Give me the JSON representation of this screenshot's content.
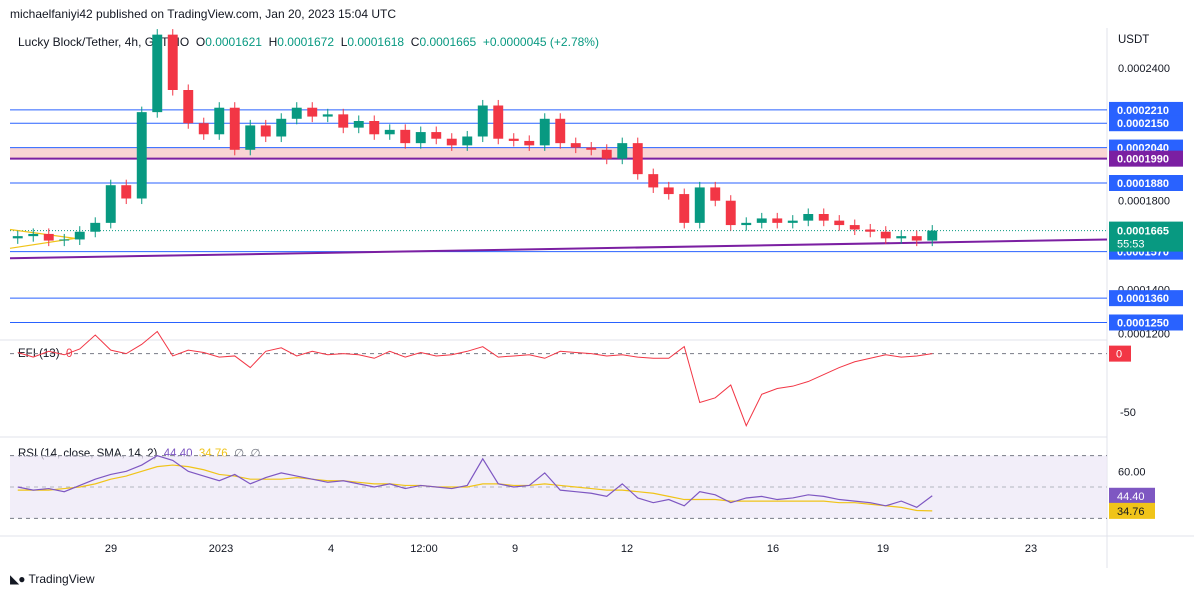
{
  "header": {
    "published": "michaelfaniyi42 published on TradingView.com, Jan 20, 2023 15:04 UTC"
  },
  "legend": {
    "symbol": "Lucky Block/Tether, 4h, GATEIO",
    "o_label": "O",
    "o": "0.0001621",
    "h_label": "H",
    "h": "0.0001672",
    "l_label": "L",
    "l": "0.0001618",
    "c_label": "C",
    "c": "0.0001665",
    "change": "+0.0000045 (+2.78%)"
  },
  "colors": {
    "up": "#089981",
    "down": "#f23645",
    "level_line": "#2962ff",
    "zone_fill": "#f8c9c9",
    "trendline": "#7b1fa2",
    "efi": "#f23645",
    "rsi": "#7e57c2",
    "rsi_sma": "#f0c419",
    "rsi_band": "#ede7f6"
  },
  "price_axis": {
    "currency": "USDT",
    "ticks": [
      "0.0002400",
      "0.0001800",
      "0.0001400",
      "0.0001200"
    ]
  },
  "levels": [
    {
      "label": "0.0002210",
      "value": 0.000221
    },
    {
      "label": "0.0002150",
      "value": 0.000215
    },
    {
      "label": "0.0002040",
      "value": 0.000204
    },
    {
      "label": "0.0001990",
      "value": 0.000199
    },
    {
      "label": "0.0001880",
      "value": 0.000188
    },
    {
      "label": "0.0001570",
      "value": 0.000157
    },
    {
      "label": "0.0001360",
      "value": 0.000136
    },
    {
      "label": "0.0001250",
      "value": 0.000125
    }
  ],
  "current_price": {
    "label": "0.0001665",
    "value": 0.0001665,
    "countdown": "55:53"
  },
  "time_axis": {
    "labels": [
      "29",
      "2023",
      "4",
      "12:00",
      "9",
      "12",
      "16",
      "19",
      "23"
    ]
  },
  "efi": {
    "legend_name": "EFI (13)",
    "legend_value": "0",
    "axis_ticks": [
      "-50"
    ],
    "current_label": "0"
  },
  "rsi": {
    "legend_name": "RSI (14, close, SMA, 14, 2)",
    "rsi_value": "44.40",
    "sma_value": "34.76",
    "extra_values": [
      "∅",
      "∅"
    ],
    "axis_ticks": [
      "60.00"
    ],
    "current_rsi": "44.40",
    "current_sma": "34.76"
  },
  "footer": {
    "brand": "TradingView",
    "logo": "tradingview-logo-icon"
  },
  "chart_data": [
    {
      "type": "candlestick",
      "title": "Lucky Block/Tether, 4h, GATEIO",
      "ylabel": "USDT",
      "ylim": [
        0.000118,
        0.000258
      ],
      "x_labels": [
        "29",
        "2023",
        "4",
        "12:00",
        "9",
        "12",
        "16",
        "19",
        "23"
      ],
      "close_series": [
        0.000164,
        0.000165,
        0.000162,
        0.0001625,
        0.000166,
        0.00017,
        0.000187,
        0.000181,
        0.00022,
        0.000255,
        0.00023,
        0.000215,
        0.00021,
        0.000222,
        0.000203,
        0.000214,
        0.000209,
        0.000217,
        0.000222,
        0.000218,
        0.000219,
        0.000213,
        0.000216,
        0.00021,
        0.000212,
        0.000206,
        0.000211,
        0.000208,
        0.000205,
        0.000209,
        0.000223,
        0.000208,
        0.000207,
        0.000205,
        0.000217,
        0.000206,
        0.000204,
        0.000203,
        0.000199,
        0.000206,
        0.000192,
        0.000186,
        0.000183,
        0.00017,
        0.000186,
        0.00018,
        0.000169,
        0.00017,
        0.000172,
        0.00017,
        0.000171,
        0.000174,
        0.000171,
        0.000169,
        0.000167,
        0.000166,
        0.000163,
        0.000164,
        0.000162,
        0.0001665
      ],
      "levels": [
        0.000221,
        0.000215,
        0.000204,
        0.000199,
        0.000188,
        0.000157,
        0.000136,
        0.000125
      ],
      "current": 0.0001665
    },
    {
      "type": "line",
      "title": "EFI (13)",
      "ylim": [
        -70,
        10
      ],
      "ticks": [
        0,
        -50
      ],
      "series": [
        {
          "values": [
            1,
            -3,
            2,
            -1,
            4,
            16,
            3,
            0,
            8,
            19,
            -2,
            3,
            1,
            -3,
            -2,
            -12,
            2,
            5,
            -2,
            2,
            -1,
            0,
            -1,
            -4,
            2,
            -3,
            1,
            -2,
            -1,
            2,
            6,
            -3,
            -2,
            -1,
            -4,
            2,
            1,
            0,
            -2,
            -1,
            -3,
            -4,
            -4,
            6,
            -42,
            -38,
            -27,
            -62,
            -35,
            -30,
            -28,
            -24,
            -18,
            -12,
            -7,
            -4,
            -1,
            -3,
            -2,
            0
          ]
        }
      ]
    },
    {
      "type": "line",
      "title": "RSI (14, close, SMA, 14, 2)",
      "ylim": [
        20,
        80
      ],
      "ticks": [
        60
      ],
      "series": [
        {
          "values": [
            50,
            48,
            49,
            47,
            51,
            55,
            58,
            60,
            64,
            70,
            67,
            60,
            57,
            54,
            58,
            52,
            56,
            59,
            57,
            55,
            53,
            54,
            52,
            50,
            52,
            49,
            51,
            50,
            49,
            51,
            68,
            52,
            50,
            51,
            59,
            48,
            47,
            46,
            44,
            52,
            43,
            40,
            42,
            38,
            47,
            45,
            40,
            43,
            44,
            42,
            43,
            45,
            44,
            42,
            41,
            40,
            38,
            41,
            37,
            44.4
          ]
        },
        {
          "values": [
            48,
            48,
            48,
            49,
            50,
            52,
            55,
            57,
            60,
            63,
            64,
            63,
            61,
            58,
            57,
            55,
            55,
            55,
            56,
            55,
            54,
            54,
            53,
            52,
            52,
            51,
            51,
            50,
            50,
            50,
            52,
            52,
            51,
            51,
            52,
            51,
            50,
            49,
            48,
            48,
            47,
            46,
            44,
            42,
            42,
            42,
            41,
            41,
            41,
            41,
            41,
            41,
            41,
            40,
            40,
            39,
            38,
            37,
            35,
            34.76
          ]
        }
      ]
    }
  ]
}
